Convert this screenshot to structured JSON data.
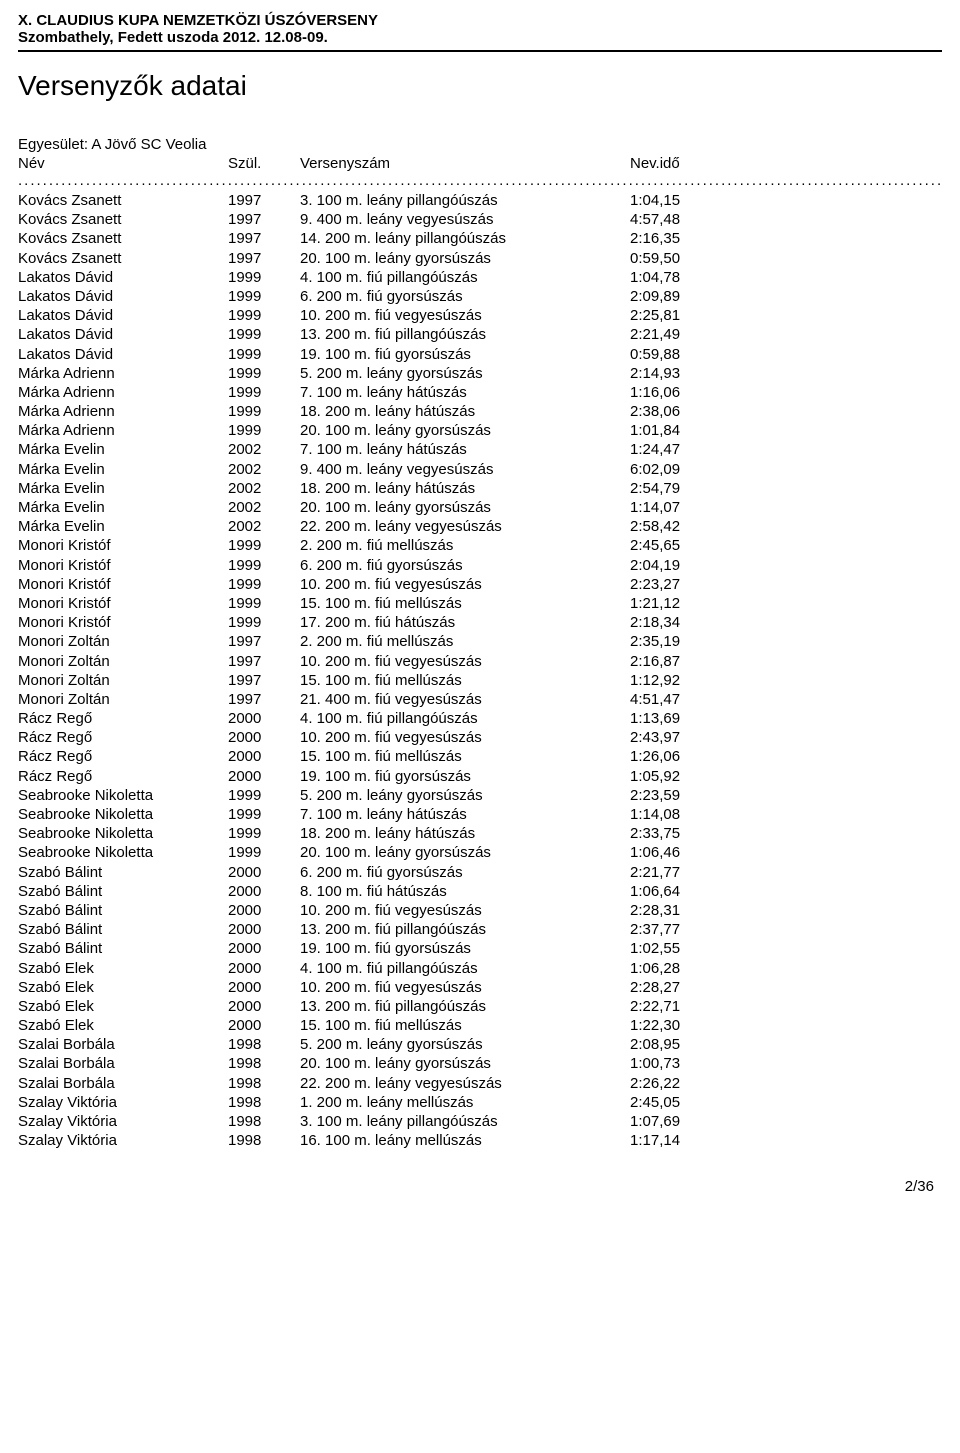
{
  "header": {
    "title": "X. CLAUDIUS KUPA NEMZETKÖZI ÚSZÓVERSENY",
    "subtitle": "Szombathely, Fedett uszoda 2012. 12.08-09."
  },
  "section_title": "Versenyzők adatai",
  "club_label": "Egyesület:",
  "club_name": "A Jövő SC Veolia",
  "columns": {
    "name": "Név",
    "year": "Szül.",
    "event": "Versenyszám",
    "time": "Nev.idő"
  },
  "rows": [
    {
      "name": "Kovács Zsanett",
      "year": "1997",
      "event": "3. 100 m. leány pillangóúszás",
      "time": "1:04,15"
    },
    {
      "name": "Kovács Zsanett",
      "year": "1997",
      "event": "9. 400 m. leány vegyesúszás",
      "time": "4:57,48"
    },
    {
      "name": "Kovács Zsanett",
      "year": "1997",
      "event": "14. 200 m. leány pillangóúszás",
      "time": "2:16,35"
    },
    {
      "name": "Kovács Zsanett",
      "year": "1997",
      "event": "20. 100 m. leány gyorsúszás",
      "time": "0:59,50"
    },
    {
      "name": "Lakatos Dávid",
      "year": "1999",
      "event": "4. 100 m. fiú pillangóúszás",
      "time": "1:04,78"
    },
    {
      "name": "Lakatos Dávid",
      "year": "1999",
      "event": "6. 200 m. fiú gyorsúszás",
      "time": "2:09,89"
    },
    {
      "name": "Lakatos Dávid",
      "year": "1999",
      "event": "10. 200 m. fiú vegyesúszás",
      "time": "2:25,81"
    },
    {
      "name": "Lakatos Dávid",
      "year": "1999",
      "event": "13. 200 m. fiú pillangóúszás",
      "time": "2:21,49"
    },
    {
      "name": "Lakatos Dávid",
      "year": "1999",
      "event": "19. 100 m. fiú gyorsúszás",
      "time": "0:59,88"
    },
    {
      "name": "Márka Adrienn",
      "year": "1999",
      "event": "5. 200 m. leány gyorsúszás",
      "time": "2:14,93"
    },
    {
      "name": "Márka Adrienn",
      "year": "1999",
      "event": "7. 100 m. leány hátúszás",
      "time": "1:16,06"
    },
    {
      "name": "Márka Adrienn",
      "year": "1999",
      "event": "18. 200 m. leány hátúszás",
      "time": "2:38,06"
    },
    {
      "name": "Márka Adrienn",
      "year": "1999",
      "event": "20. 100 m. leány gyorsúszás",
      "time": "1:01,84"
    },
    {
      "name": "Márka Evelin",
      "year": "2002",
      "event": "7. 100 m. leány hátúszás",
      "time": "1:24,47"
    },
    {
      "name": "Márka Evelin",
      "year": "2002",
      "event": "9. 400 m. leány vegyesúszás",
      "time": "6:02,09"
    },
    {
      "name": "Márka Evelin",
      "year": "2002",
      "event": "18. 200 m. leány hátúszás",
      "time": "2:54,79"
    },
    {
      "name": "Márka Evelin",
      "year": "2002",
      "event": "20. 100 m. leány gyorsúszás",
      "time": "1:14,07"
    },
    {
      "name": "Márka Evelin",
      "year": "2002",
      "event": "22. 200 m. leány vegyesúszás",
      "time": "2:58,42"
    },
    {
      "name": "Monori Kristóf",
      "year": "1999",
      "event": "2. 200 m. fiú mellúszás",
      "time": "2:45,65"
    },
    {
      "name": "Monori Kristóf",
      "year": "1999",
      "event": "6. 200 m. fiú gyorsúszás",
      "time": "2:04,19"
    },
    {
      "name": "Monori Kristóf",
      "year": "1999",
      "event": "10. 200 m. fiú vegyesúszás",
      "time": "2:23,27"
    },
    {
      "name": "Monori Kristóf",
      "year": "1999",
      "event": "15. 100 m. fiú mellúszás",
      "time": "1:21,12"
    },
    {
      "name": "Monori Kristóf",
      "year": "1999",
      "event": "17. 200 m. fiú hátúszás",
      "time": "2:18,34"
    },
    {
      "name": "Monori Zoltán",
      "year": "1997",
      "event": "2. 200 m. fiú mellúszás",
      "time": "2:35,19"
    },
    {
      "name": "Monori Zoltán",
      "year": "1997",
      "event": "10. 200 m. fiú vegyesúszás",
      "time": "2:16,87"
    },
    {
      "name": "Monori Zoltán",
      "year": "1997",
      "event": "15. 100 m. fiú mellúszás",
      "time": "1:12,92"
    },
    {
      "name": "Monori Zoltán",
      "year": "1997",
      "event": "21. 400 m. fiú vegyesúszás",
      "time": "4:51,47"
    },
    {
      "name": "Rácz Regő",
      "year": "2000",
      "event": "4. 100 m. fiú pillangóúszás",
      "time": "1:13,69"
    },
    {
      "name": "Rácz Regő",
      "year": "2000",
      "event": "10. 200 m. fiú vegyesúszás",
      "time": "2:43,97"
    },
    {
      "name": "Rácz Regő",
      "year": "2000",
      "event": "15. 100 m. fiú mellúszás",
      "time": "1:26,06"
    },
    {
      "name": "Rácz Regő",
      "year": "2000",
      "event": "19. 100 m. fiú gyorsúszás",
      "time": "1:05,92"
    },
    {
      "name": "Seabrooke Nikoletta",
      "year": "1999",
      "event": "5. 200 m. leány gyorsúszás",
      "time": "2:23,59"
    },
    {
      "name": "Seabrooke Nikoletta",
      "year": "1999",
      "event": "7. 100 m. leány hátúszás",
      "time": "1:14,08"
    },
    {
      "name": "Seabrooke Nikoletta",
      "year": "1999",
      "event": "18. 200 m. leány hátúszás",
      "time": "2:33,75"
    },
    {
      "name": "Seabrooke Nikoletta",
      "year": "1999",
      "event": "20. 100 m. leány gyorsúszás",
      "time": "1:06,46"
    },
    {
      "name": "Szabó Bálint",
      "year": "2000",
      "event": "6. 200 m. fiú gyorsúszás",
      "time": "2:21,77"
    },
    {
      "name": "Szabó Bálint",
      "year": "2000",
      "event": "8. 100 m. fiú hátúszás",
      "time": "1:06,64"
    },
    {
      "name": "Szabó Bálint",
      "year": "2000",
      "event": "10. 200 m. fiú vegyesúszás",
      "time": "2:28,31"
    },
    {
      "name": "Szabó Bálint",
      "year": "2000",
      "event": "13. 200 m. fiú pillangóúszás",
      "time": "2:37,77"
    },
    {
      "name": "Szabó Bálint",
      "year": "2000",
      "event": "19. 100 m. fiú gyorsúszás",
      "time": "1:02,55"
    },
    {
      "name": "Szabó Elek",
      "year": "2000",
      "event": "4. 100 m. fiú pillangóúszás",
      "time": "1:06,28"
    },
    {
      "name": "Szabó Elek",
      "year": "2000",
      "event": "10. 200 m. fiú vegyesúszás",
      "time": "2:28,27"
    },
    {
      "name": "Szabó Elek",
      "year": "2000",
      "event": "13. 200 m. fiú pillangóúszás",
      "time": "2:22,71"
    },
    {
      "name": "Szabó Elek",
      "year": "2000",
      "event": "15. 100 m. fiú mellúszás",
      "time": "1:22,30"
    },
    {
      "name": "Szalai Borbála",
      "year": "1998",
      "event": "5. 200 m. leány gyorsúszás",
      "time": "2:08,95"
    },
    {
      "name": "Szalai Borbála",
      "year": "1998",
      "event": "20. 100 m. leány gyorsúszás",
      "time": "1:00,73"
    },
    {
      "name": "Szalai Borbála",
      "year": "1998",
      "event": "22. 200 m. leány vegyesúszás",
      "time": "2:26,22"
    },
    {
      "name": "Szalay Viktória",
      "year": "1998",
      "event": "1. 200 m. leány mellúszás",
      "time": "2:45,05"
    },
    {
      "name": "Szalay Viktória",
      "year": "1998",
      "event": "3. 100 m. leány pillangóúszás",
      "time": "1:07,69"
    },
    {
      "name": "Szalay Viktória",
      "year": "1998",
      "event": "16. 100 m. leány mellúszás",
      "time": "1:17,14"
    }
  ],
  "footer": {
    "page": "2/36"
  }
}
